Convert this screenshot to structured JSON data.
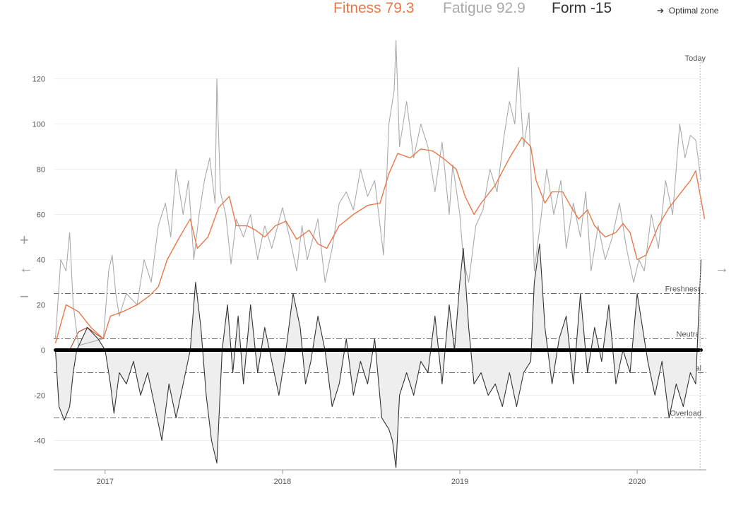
{
  "header": {
    "fitness_label": "Fitness 79.3",
    "fatigue_label": "Fatigue 92.9",
    "form_label": "Form -15",
    "optimal_zone_link": "Optimal zone",
    "arrow_glyph": "➔"
  },
  "controls": {
    "zoom_in": "+",
    "zoom_out": "−",
    "pan_left": "←",
    "pan_right": "→"
  },
  "colors": {
    "fitness": "#e8784a",
    "fatigue": "#aaaaaa",
    "form": "#333333",
    "form_fill": "#eeeeee",
    "early_curve": "#b5502a"
  },
  "chart_data": {
    "type": "line",
    "today_label": "Today",
    "x_ticks": [
      "2017",
      "2018",
      "2019",
      "2020"
    ],
    "y_ticks": [
      "120",
      "100",
      "80",
      "60",
      "40",
      "20",
      "0",
      "-20",
      "-40"
    ],
    "ylim": [
      -53,
      133
    ],
    "zones": [
      {
        "name": "Freshness",
        "value": 25
      },
      {
        "name": "Neutral",
        "value": 5
      },
      {
        "name": "Optimal",
        "value": -10
      },
      {
        "name": "Overload",
        "value": -30
      }
    ],
    "series": [
      {
        "name": "Fitness",
        "key": "fitness",
        "values": [
          [
            2016.72,
            3
          ],
          [
            2016.78,
            20
          ],
          [
            2016.85,
            17
          ],
          [
            2016.92,
            10
          ],
          [
            2016.99,
            5
          ],
          [
            2017.03,
            15
          ],
          [
            2017.1,
            17
          ],
          [
            2017.18,
            20
          ],
          [
            2017.25,
            24
          ],
          [
            2017.3,
            28
          ],
          [
            2017.35,
            40
          ],
          [
            2017.42,
            50
          ],
          [
            2017.48,
            58
          ],
          [
            2017.52,
            45
          ],
          [
            2017.58,
            50
          ],
          [
            2017.64,
            63
          ],
          [
            2017.7,
            68
          ],
          [
            2017.74,
            55
          ],
          [
            2017.8,
            55
          ],
          [
            2017.85,
            53
          ],
          [
            2017.9,
            50
          ],
          [
            2017.96,
            55
          ],
          [
            2018.02,
            57
          ],
          [
            2018.08,
            49
          ],
          [
            2018.15,
            53
          ],
          [
            2018.2,
            47
          ],
          [
            2018.25,
            45
          ],
          [
            2018.32,
            55
          ],
          [
            2018.4,
            60
          ],
          [
            2018.48,
            64
          ],
          [
            2018.55,
            65
          ],
          [
            2018.6,
            78
          ],
          [
            2018.65,
            87
          ],
          [
            2018.72,
            85
          ],
          [
            2018.78,
            89
          ],
          [
            2018.85,
            88
          ],
          [
            2018.92,
            84
          ],
          [
            2018.98,
            80
          ],
          [
            2019.03,
            68
          ],
          [
            2019.08,
            60
          ],
          [
            2019.12,
            65
          ],
          [
            2019.2,
            73
          ],
          [
            2019.28,
            85
          ],
          [
            2019.35,
            94
          ],
          [
            2019.4,
            90
          ],
          [
            2019.43,
            75
          ],
          [
            2019.48,
            65
          ],
          [
            2019.52,
            70
          ],
          [
            2019.58,
            70
          ],
          [
            2019.63,
            63
          ],
          [
            2019.67,
            58
          ],
          [
            2019.72,
            62
          ],
          [
            2019.76,
            55
          ],
          [
            2019.82,
            50
          ],
          [
            2019.88,
            52
          ],
          [
            2019.92,
            56
          ],
          [
            2019.96,
            52
          ],
          [
            2020.0,
            40
          ],
          [
            2020.05,
            42
          ],
          [
            2020.12,
            55
          ],
          [
            2020.18,
            63
          ],
          [
            2020.25,
            70
          ],
          [
            2020.3,
            75
          ],
          [
            2020.33,
            79.3
          ],
          [
            2020.38,
            58
          ]
        ]
      },
      {
        "name": "Fatigue",
        "key": "fatigue",
        "values": [
          [
            2016.72,
            5
          ],
          [
            2016.75,
            40
          ],
          [
            2016.78,
            35
          ],
          [
            2016.8,
            52
          ],
          [
            2016.82,
            20
          ],
          [
            2016.85,
            2
          ],
          [
            2016.99,
            5
          ],
          [
            2017.02,
            35
          ],
          [
            2017.04,
            42
          ],
          [
            2017.06,
            25
          ],
          [
            2017.08,
            15
          ],
          [
            2017.12,
            25
          ],
          [
            2017.18,
            20
          ],
          [
            2017.22,
            40
          ],
          [
            2017.26,
            30
          ],
          [
            2017.3,
            55
          ],
          [
            2017.34,
            65
          ],
          [
            2017.37,
            50
          ],
          [
            2017.4,
            80
          ],
          [
            2017.44,
            60
          ],
          [
            2017.47,
            75
          ],
          [
            2017.5,
            40
          ],
          [
            2017.53,
            60
          ],
          [
            2017.56,
            75
          ],
          [
            2017.59,
            85
          ],
          [
            2017.62,
            65
          ],
          [
            2017.63,
            120
          ],
          [
            2017.65,
            70
          ],
          [
            2017.68,
            60
          ],
          [
            2017.71,
            38
          ],
          [
            2017.74,
            58
          ],
          [
            2017.78,
            50
          ],
          [
            2017.82,
            60
          ],
          [
            2017.86,
            40
          ],
          [
            2017.9,
            55
          ],
          [
            2017.94,
            45
          ],
          [
            2018.0,
            63
          ],
          [
            2018.04,
            50
          ],
          [
            2018.08,
            35
          ],
          [
            2018.11,
            55
          ],
          [
            2018.14,
            40
          ],
          [
            2018.2,
            58
          ],
          [
            2018.24,
            30
          ],
          [
            2018.28,
            45
          ],
          [
            2018.32,
            65
          ],
          [
            2018.36,
            70
          ],
          [
            2018.4,
            62
          ],
          [
            2018.44,
            80
          ],
          [
            2018.48,
            68
          ],
          [
            2018.52,
            75
          ],
          [
            2018.57,
            42
          ],
          [
            2018.6,
            100
          ],
          [
            2018.63,
            115
          ],
          [
            2018.64,
            137
          ],
          [
            2018.66,
            90
          ],
          [
            2018.7,
            110
          ],
          [
            2018.74,
            85
          ],
          [
            2018.78,
            100
          ],
          [
            2018.82,
            90
          ],
          [
            2018.86,
            70
          ],
          [
            2018.9,
            92
          ],
          [
            2018.94,
            60
          ],
          [
            2018.96,
            82
          ],
          [
            2019.0,
            60
          ],
          [
            2019.02,
            40
          ],
          [
            2019.05,
            30
          ],
          [
            2019.09,
            55
          ],
          [
            2019.13,
            62
          ],
          [
            2019.17,
            80
          ],
          [
            2019.21,
            70
          ],
          [
            2019.25,
            95
          ],
          [
            2019.28,
            110
          ],
          [
            2019.31,
            100
          ],
          [
            2019.33,
            125
          ],
          [
            2019.36,
            90
          ],
          [
            2019.39,
            105
          ],
          [
            2019.42,
            35
          ],
          [
            2019.46,
            60
          ],
          [
            2019.49,
            80
          ],
          [
            2019.53,
            60
          ],
          [
            2019.57,
            75
          ],
          [
            2019.6,
            45
          ],
          [
            2019.64,
            65
          ],
          [
            2019.68,
            50
          ],
          [
            2019.71,
            70
          ],
          [
            2019.74,
            35
          ],
          [
            2019.78,
            55
          ],
          [
            2019.82,
            40
          ],
          [
            2019.86,
            50
          ],
          [
            2019.9,
            65
          ],
          [
            2019.94,
            45
          ],
          [
            2019.98,
            30
          ],
          [
            2020.01,
            40
          ],
          [
            2020.04,
            35
          ],
          [
            2020.08,
            60
          ],
          [
            2020.12,
            45
          ],
          [
            2020.16,
            75
          ],
          [
            2020.2,
            60
          ],
          [
            2020.24,
            100
          ],
          [
            2020.27,
            85
          ],
          [
            2020.3,
            95
          ],
          [
            2020.33,
            92.9
          ],
          [
            2020.36,
            75
          ]
        ]
      },
      {
        "name": "Form",
        "key": "form",
        "values": [
          [
            2016.72,
            0
          ],
          [
            2016.74,
            -25
          ],
          [
            2016.77,
            -31
          ],
          [
            2016.8,
            -25
          ],
          [
            2016.82,
            -10
          ],
          [
            2016.84,
            0
          ],
          [
            2016.9,
            10
          ],
          [
            2016.96,
            5
          ],
          [
            2017.0,
            0
          ],
          [
            2017.03,
            -15
          ],
          [
            2017.05,
            -28
          ],
          [
            2017.08,
            -10
          ],
          [
            2017.12,
            -15
          ],
          [
            2017.16,
            -5
          ],
          [
            2017.2,
            -20
          ],
          [
            2017.24,
            -10
          ],
          [
            2017.28,
            -25
          ],
          [
            2017.32,
            -40
          ],
          [
            2017.36,
            -15
          ],
          [
            2017.4,
            -30
          ],
          [
            2017.44,
            -15
          ],
          [
            2017.48,
            0
          ],
          [
            2017.51,
            30
          ],
          [
            2017.54,
            10
          ],
          [
            2017.57,
            -20
          ],
          [
            2017.6,
            -40
          ],
          [
            2017.63,
            -50
          ],
          [
            2017.66,
            0
          ],
          [
            2017.69,
            20
          ],
          [
            2017.72,
            -10
          ],
          [
            2017.75,
            15
          ],
          [
            2017.78,
            -15
          ],
          [
            2017.82,
            20
          ],
          [
            2017.86,
            -10
          ],
          [
            2017.9,
            10
          ],
          [
            2017.94,
            -5
          ],
          [
            2017.98,
            -20
          ],
          [
            2018.02,
            0
          ],
          [
            2018.06,
            25
          ],
          [
            2018.1,
            10
          ],
          [
            2018.13,
            -15
          ],
          [
            2018.16,
            -5
          ],
          [
            2018.2,
            15
          ],
          [
            2018.24,
            0
          ],
          [
            2018.28,
            -25
          ],
          [
            2018.32,
            -15
          ],
          [
            2018.36,
            5
          ],
          [
            2018.4,
            -20
          ],
          [
            2018.44,
            -5
          ],
          [
            2018.48,
            -15
          ],
          [
            2018.52,
            5
          ],
          [
            2018.56,
            -30
          ],
          [
            2018.6,
            -35
          ],
          [
            2018.62,
            -40
          ],
          [
            2018.64,
            -52
          ],
          [
            2018.66,
            -20
          ],
          [
            2018.7,
            -10
          ],
          [
            2018.74,
            -20
          ],
          [
            2018.78,
            -5
          ],
          [
            2018.82,
            -10
          ],
          [
            2018.86,
            15
          ],
          [
            2018.9,
            -15
          ],
          [
            2018.94,
            20
          ],
          [
            2018.97,
            0
          ],
          [
            2019.0,
            30
          ],
          [
            2019.02,
            45
          ],
          [
            2019.05,
            10
          ],
          [
            2019.08,
            -15
          ],
          [
            2019.12,
            -10
          ],
          [
            2019.16,
            -20
          ],
          [
            2019.2,
            -15
          ],
          [
            2019.24,
            -25
          ],
          [
            2019.28,
            -10
          ],
          [
            2019.32,
            -25
          ],
          [
            2019.36,
            -10
          ],
          [
            2019.4,
            -5
          ],
          [
            2019.42,
            30
          ],
          [
            2019.45,
            47
          ],
          [
            2019.48,
            10
          ],
          [
            2019.52,
            -15
          ],
          [
            2019.56,
            5
          ],
          [
            2019.6,
            15
          ],
          [
            2019.64,
            -15
          ],
          [
            2019.68,
            25
          ],
          [
            2019.72,
            -10
          ],
          [
            2019.76,
            10
          ],
          [
            2019.8,
            -5
          ],
          [
            2019.84,
            20
          ],
          [
            2019.88,
            -15
          ],
          [
            2019.92,
            0
          ],
          [
            2019.96,
            -10
          ],
          [
            2020.0,
            25
          ],
          [
            2020.03,
            10
          ],
          [
            2020.06,
            -5
          ],
          [
            2020.1,
            -20
          ],
          [
            2020.14,
            -5
          ],
          [
            2020.18,
            -30
          ],
          [
            2020.22,
            -15
          ],
          [
            2020.26,
            -25
          ],
          [
            2020.3,
            -10
          ],
          [
            2020.33,
            -15
          ],
          [
            2020.36,
            40
          ]
        ]
      }
    ],
    "early_fitness_curve": [
      [
        2016.72,
        0
      ],
      [
        2016.8,
        0
      ],
      [
        2016.85,
        8
      ],
      [
        2016.9,
        10
      ],
      [
        2016.95,
        7
      ],
      [
        2016.99,
        5
      ]
    ]
  }
}
